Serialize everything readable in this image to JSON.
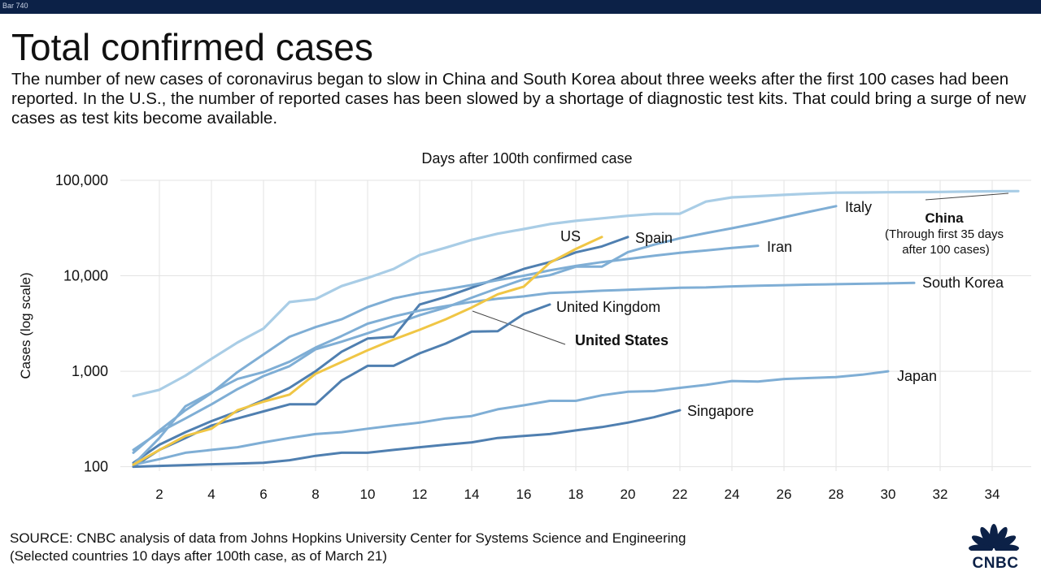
{
  "topbar": {
    "label": "Bar 740"
  },
  "header": {
    "title": "Total confirmed cases",
    "subtitle": "The number of new cases of coronavirus began to slow in China and South Korea about three weeks after the first 100 cases had been reported. In the U.S., the number of reported cases has been slowed by a shortage of diagnostic test kits. That could bring a surge of new cases as test kits become available."
  },
  "footer": {
    "source_line1": "SOURCE: CNBC analysis of data from Johns Hopkins University Center for Systems Science and Engineering",
    "source_line2": "(Selected countries 10 days after 100th case, as of March 21)",
    "logo_text": "CNBC"
  },
  "chart_data": {
    "type": "line",
    "title": "Days after 100th confirmed case",
    "ylabel": "Cases (log scale)",
    "xlabel": "",
    "yscale": "log",
    "ylim": [
      90,
      100000
    ],
    "xlim": [
      0.5,
      35.5
    ],
    "yticks": [
      100,
      1000,
      10000,
      100000
    ],
    "ytick_labels": [
      "100",
      "1,000",
      "10,000",
      "100,000"
    ],
    "xticks": [
      2,
      4,
      6,
      8,
      10,
      12,
      14,
      16,
      18,
      20,
      22,
      24,
      26,
      28,
      30,
      32,
      34
    ],
    "colors": {
      "light": "#a9cde6",
      "mid": "#7faed5",
      "dark": "#4f7fb0",
      "us": "#f0c645",
      "grid": "#e3e3e3",
      "leader": "#444444"
    },
    "series": [
      {
        "name": "China",
        "color_key": "light",
        "width": 3.2,
        "x": [
          1,
          2,
          3,
          4,
          5,
          6,
          7,
          8,
          9,
          10,
          11,
          12,
          13,
          14,
          15,
          16,
          17,
          18,
          19,
          20,
          21,
          22,
          23,
          24,
          25,
          26,
          27,
          28,
          29,
          30,
          31,
          32,
          33,
          34,
          35
        ],
        "values": [
          550,
          640,
          900,
          1350,
          2000,
          2800,
          5300,
          5700,
          7800,
          9500,
          11800,
          16500,
          19700,
          23800,
          27600,
          30900,
          34800,
          37600,
          40000,
          42500,
          44400,
          44700,
          59800,
          66300,
          68300,
          70400,
          72500,
          74200,
          74600,
          75000,
          75300,
          75600,
          76200,
          76700,
          77000
        ]
      },
      {
        "name": "Italy",
        "color_key": "mid",
        "width": 3,
        "x": [
          1,
          2,
          3,
          4,
          5,
          6,
          7,
          8,
          9,
          10,
          11,
          12,
          13,
          14,
          15,
          16,
          17,
          18,
          19,
          20,
          21,
          22,
          23,
          24,
          25,
          26,
          27,
          28
        ],
        "values": [
          150,
          230,
          320,
          450,
          650,
          890,
          1130,
          1700,
          2040,
          2500,
          3090,
          3860,
          4640,
          5900,
          7400,
          9200,
          10150,
          12460,
          12460,
          17700,
          21160,
          24750,
          27980,
          31500,
          35700,
          41000,
          47000,
          53600
        ]
      },
      {
        "name": "Spain",
        "color_key": "dark",
        "width": 3,
        "x": [
          1,
          2,
          3,
          4,
          5,
          6,
          7,
          8,
          9,
          10,
          11,
          12,
          13,
          14,
          15,
          16,
          17,
          18,
          19,
          20
        ],
        "values": [
          110,
          170,
          230,
          300,
          380,
          500,
          670,
          1000,
          1600,
          2200,
          2300,
          5000,
          6000,
          7500,
          9400,
          11800,
          13900,
          17600,
          20300,
          25500
        ]
      },
      {
        "name": "Iran",
        "color_key": "mid",
        "width": 3,
        "x": [
          1,
          2,
          3,
          4,
          5,
          6,
          7,
          8,
          9,
          10,
          11,
          12,
          13,
          14,
          15,
          16,
          17,
          18,
          19,
          20,
          21,
          22,
          23,
          24,
          25
        ],
        "values": [
          140,
          240,
          390,
          590,
          980,
          1500,
          2300,
          2900,
          3500,
          4700,
          5800,
          6600,
          7200,
          8000,
          9000,
          10000,
          11400,
          12700,
          13900,
          14990,
          16200,
          17400,
          18400,
          19600,
          20600
        ]
      },
      {
        "name": "South Korea",
        "color_key": "mid",
        "width": 3,
        "x": [
          1,
          2,
          3,
          4,
          5,
          6,
          7,
          8,
          9,
          10,
          11,
          12,
          13,
          14,
          15,
          16,
          17,
          18,
          19,
          20,
          21,
          22,
          23,
          24,
          25,
          26,
          27,
          28,
          29,
          30,
          31
        ],
        "values": [
          105,
          200,
          430,
          600,
          830,
          980,
          1260,
          1770,
          2340,
          3150,
          3740,
          4330,
          4810,
          5330,
          5760,
          6090,
          6590,
          6770,
          6980,
          7130,
          7320,
          7510,
          7550,
          7750,
          7870,
          7980,
          8080,
          8160,
          8240,
          8330,
          8420
        ]
      },
      {
        "name": "United Kingdom",
        "color_key": "dark",
        "width": 3,
        "x": [
          1,
          2,
          3,
          4,
          5,
          6,
          7,
          8,
          9,
          10,
          11,
          12,
          13,
          14,
          15,
          16,
          17
        ],
        "values": [
          100,
          150,
          200,
          270,
          320,
          380,
          450,
          450,
          800,
          1140,
          1140,
          1540,
          1950,
          2600,
          2630,
          3980,
          5000
        ]
      },
      {
        "name": "US",
        "color_key": "us",
        "width": 3,
        "x": [
          1,
          2,
          3,
          4,
          5,
          6,
          7,
          8,
          9,
          10,
          11,
          12,
          13,
          14,
          15,
          16,
          17,
          18,
          19
        ],
        "values": [
          105,
          150,
          210,
          250,
          390,
          480,
          570,
          940,
          1250,
          1660,
          2150,
          2720,
          3500,
          4650,
          6400,
          7700,
          13700,
          19100,
          25500
        ]
      },
      {
        "name": "Japan",
        "color_key": "mid",
        "width": 3,
        "x": [
          1,
          2,
          3,
          4,
          5,
          6,
          7,
          8,
          9,
          10,
          11,
          12,
          13,
          14,
          15,
          16,
          17,
          18,
          19,
          20,
          21,
          22,
          23,
          24,
          25,
          26,
          27,
          28,
          29,
          30
        ],
        "values": [
          105,
          120,
          140,
          150,
          160,
          180,
          200,
          220,
          230,
          250,
          270,
          290,
          320,
          340,
          400,
          440,
          490,
          490,
          560,
          610,
          620,
          670,
          720,
          790,
          780,
          830,
          850,
          870,
          920,
          1000
        ]
      },
      {
        "name": "Singapore",
        "color_key": "dark",
        "width": 3,
        "x": [
          1,
          2,
          3,
          4,
          5,
          6,
          7,
          8,
          9,
          10,
          11,
          12,
          13,
          14,
          15,
          16,
          17,
          18,
          19,
          20,
          21,
          22
        ],
        "values": [
          100,
          102,
          104,
          106,
          108,
          110,
          117,
          130,
          140,
          140,
          150,
          160,
          170,
          180,
          200,
          210,
          220,
          240,
          260,
          290,
          330,
          390
        ]
      }
    ],
    "annotations": [
      {
        "text": "Italy",
        "bold": false
      },
      {
        "text": "China",
        "bold": true
      },
      {
        "text": "(Through first 35 days",
        "bold": false
      },
      {
        "text": "after 100 cases)",
        "bold": false
      },
      {
        "text": "US",
        "bold": false
      },
      {
        "text": "Spain",
        "bold": false
      },
      {
        "text": "Iran",
        "bold": false
      },
      {
        "text": "South Korea",
        "bold": false
      },
      {
        "text": "United Kingdom",
        "bold": false
      },
      {
        "text": "United States",
        "bold": true
      },
      {
        "text": "Japan",
        "bold": false
      },
      {
        "text": "Singapore",
        "bold": false
      }
    ],
    "grid": true
  }
}
